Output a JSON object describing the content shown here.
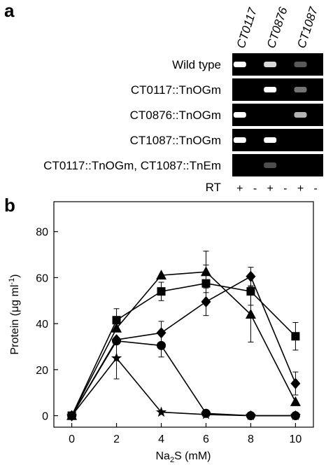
{
  "panel_a": {
    "label": "a",
    "lane_headers": [
      "CT0117",
      "CT0876",
      "CT1087"
    ],
    "rows": [
      {
        "label": "Wild type",
        "bands": [
          1.0,
          0.0,
          0.85,
          0.0,
          0.35,
          0.0
        ]
      },
      {
        "label": "CT0117::TnOGm",
        "bands": [
          0.0,
          0.0,
          1.0,
          0.0,
          0.45,
          0.0
        ]
      },
      {
        "label": "CT0876::TnOGm",
        "bands": [
          1.0,
          0.0,
          0.0,
          0.0,
          0.7,
          0.0
        ]
      },
      {
        "label": "CT1087::TnOGm",
        "bands": [
          1.0,
          0.0,
          1.0,
          0.0,
          0.0,
          0.0
        ]
      },
      {
        "label": "CT0117::TnOGm, CT1087::TnEm",
        "bands": [
          0.0,
          0.0,
          0.3,
          0.0,
          0.0,
          0.0
        ]
      }
    ],
    "rt_label": "RT",
    "rt_marks": [
      "+",
      "-",
      "+",
      "-",
      "+",
      "-"
    ],
    "colors": {
      "gel_background": "#000000",
      "band": "#ffffff"
    }
  },
  "panel_b": {
    "label": "b"
  },
  "chart_data": {
    "type": "line",
    "xlabel_main": "Na",
    "xlabel_sub": "2",
    "xlabel_rest": "S (mM)",
    "ylabel_main": "Protein (μg ml",
    "ylabel_sup": "-1",
    "ylabel_end": ")",
    "x": [
      0,
      2,
      4,
      6,
      8,
      10
    ],
    "xlim": [
      -0.8,
      10.8
    ],
    "ylim": [
      -5,
      93
    ],
    "xticks": [
      0,
      2,
      4,
      6,
      8,
      10
    ],
    "yticks": [
      0,
      20,
      40,
      60,
      80
    ],
    "grid": false,
    "legend": "none",
    "series": [
      {
        "marker": "square",
        "values": [
          0,
          41.5,
          54,
          57.5,
          54,
          34.5
        ],
        "errors": [
          0,
          5,
          4,
          8,
          6,
          6
        ]
      },
      {
        "marker": "triangle",
        "values": [
          0,
          38,
          61,
          62.5,
          44,
          6
        ],
        "errors": [
          0,
          0,
          0,
          9,
          12,
          0
        ]
      },
      {
        "marker": "diamond",
        "values": [
          0,
          33,
          36,
          49.5,
          60.5,
          14
        ],
        "errors": [
          0,
          0,
          5,
          6,
          4,
          5
        ]
      },
      {
        "marker": "circle",
        "values": [
          0,
          32.5,
          30.5,
          1,
          0,
          0
        ],
        "errors": [
          0,
          0,
          5,
          0,
          0,
          0
        ]
      },
      {
        "marker": "star",
        "values": [
          0,
          25,
          1.5,
          0.5,
          0,
          0
        ],
        "errors": [
          0,
          9,
          0,
          0,
          0,
          0
        ]
      }
    ],
    "colors": {
      "line": "#000000",
      "marker": "#000000"
    }
  }
}
